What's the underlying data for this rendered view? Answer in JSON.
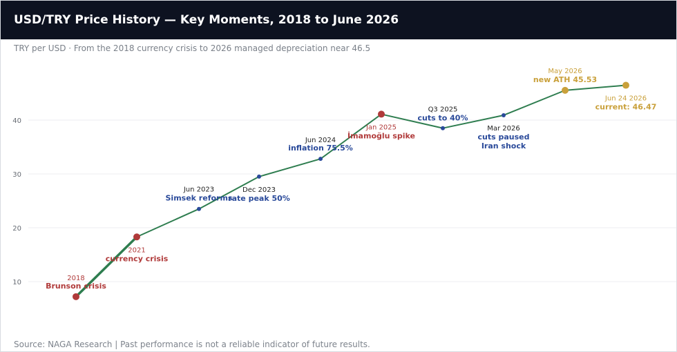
{
  "header": {
    "title": "USD/TRY Price History — Key Moments, 2018 to June 2026"
  },
  "subtitle": "TRY per USD · From the 2018 currency crisis to 2026 managed depreciation near 46.5",
  "footer": "Source: NAGA Research  |  Past performance is not a reliable indicator of future results.",
  "colors": {
    "line": "#2e7d4f",
    "crisis": "#b03a3a",
    "policy": "#2a4a9a",
    "record": "#c9a03a",
    "grid": "#eceef1",
    "tick": "#666b73"
  },
  "chart_data": {
    "type": "line",
    "title": "USD/TRY Price History — Key Moments, 2018 to June 2026",
    "subtitle": "TRY per USD · From the 2018 currency crisis to 2026 managed depreciation near 46.5",
    "xlabel": "",
    "ylabel": "",
    "ylim": [
      4.5,
      50
    ],
    "yticks": [
      10,
      20,
      30,
      40
    ],
    "grid": true,
    "legend": "none",
    "series": [
      {
        "points": [
          {
            "x": "2018",
            "y": 7.2,
            "kind": "crisis",
            "date": "2018",
            "label": "Brunson crisis"
          },
          {
            "x": "2021",
            "y": 18.3,
            "kind": "crisis",
            "date": "2021",
            "label": "currency crisis"
          },
          {
            "x": "Jun 2023",
            "y": 23.5,
            "kind": "policy",
            "date": "Jun 2023",
            "label": "Simsek reforms"
          },
          {
            "x": "Dec 2023",
            "y": 29.5,
            "kind": "policy",
            "date": "Dec 2023",
            "label": "rate peak 50%"
          },
          {
            "x": "Jun 2024",
            "y": 32.8,
            "kind": "policy",
            "date": "Jun 2024",
            "label": "inflation 75.5%"
          },
          {
            "x": "Jan 2025",
            "y": 41.1,
            "kind": "crisis",
            "date": "Jan 2025",
            "label": "İmamoğlu spike"
          },
          {
            "x": "Q3 2025",
            "y": 38.5,
            "kind": "policy",
            "date": "Q3 2025",
            "label": "cuts to 40%"
          },
          {
            "x": "Mar 2026",
            "y": 40.9,
            "kind": "policy",
            "date": "Mar 2026",
            "label": "cuts paused Iran shock"
          },
          {
            "x": "May 2026",
            "y": 45.53,
            "kind": "record",
            "date": "May 2026",
            "label": "new ATH 45.53"
          },
          {
            "x": "Jun 24 2026",
            "y": 46.47,
            "kind": "record",
            "date": "Jun 24 2026",
            "label": "current: 46.47"
          }
        ]
      }
    ]
  }
}
